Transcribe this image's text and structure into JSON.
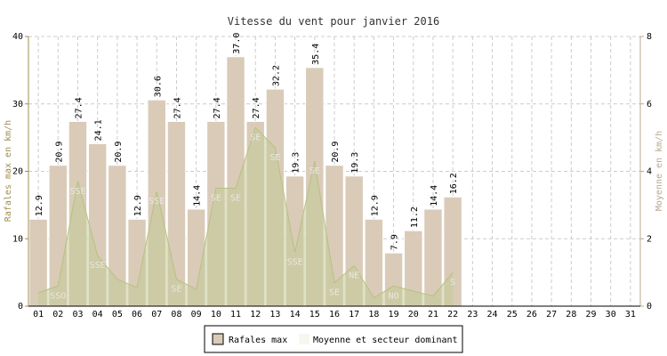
{
  "chart_data": {
    "type": "bar",
    "title": "Vitesse du vent pour janvier 2016",
    "y_label": "Rafales max en km/h",
    "y2_label": "Moyenne en km/h",
    "categories": [
      "01",
      "02",
      "03",
      "04",
      "05",
      "06",
      "07",
      "08",
      "09",
      "10",
      "11",
      "12",
      "13",
      "14",
      "15",
      "16",
      "17",
      "18",
      "19",
      "20",
      "21",
      "22",
      "23",
      "24",
      "25",
      "26",
      "27",
      "28",
      "29",
      "30",
      "31"
    ],
    "series": [
      {
        "name": "Rafales max",
        "color": "#d9cbb8",
        "values": [
          12.9,
          20.9,
          27.4,
          24.1,
          20.9,
          12.9,
          30.6,
          27.4,
          14.4,
          27.4,
          37.0,
          27.4,
          32.2,
          19.3,
          35.4,
          20.9,
          19.3,
          12.9,
          7.9,
          11.2,
          14.4,
          16.2,
          null,
          null,
          null,
          null,
          null,
          null,
          null,
          null,
          null
        ],
        "value_labels": [
          "12.9",
          "20.9",
          "27.4",
          "24.1",
          "20.9",
          "12.9",
          "30.6",
          "27.4",
          "14.4",
          "27.4",
          "37.0",
          "27.4",
          "32.2",
          "19.3",
          "35.4",
          "20.9",
          "19.3",
          "12.9",
          "7.9",
          "11.2",
          "14.4",
          "16.2",
          null,
          null,
          null,
          null,
          null,
          null,
          null,
          null,
          null
        ]
      },
      {
        "name": "Moyenne et secteur dominant",
        "color": "#c3cb98",
        "axis": "y2",
        "values": [
          0.4,
          0.6,
          3.7,
          1.5,
          0.8,
          0.55,
          3.4,
          0.8,
          0.5,
          3.5,
          3.5,
          5.3,
          4.7,
          1.6,
          4.3,
          0.7,
          1.2,
          0.25,
          0.6,
          0.45,
          0.3,
          1.0,
          null,
          null,
          null,
          null,
          null,
          null,
          null,
          null,
          null
        ],
        "sectors": [
          null,
          "SSO",
          "SSE",
          "SSE",
          null,
          null,
          "SSE",
          "SE",
          null,
          "SE",
          "SE",
          "SE",
          "SE",
          "SSE",
          "SE",
          "SE",
          "NE",
          null,
          "NO",
          null,
          null,
          "S",
          null,
          null,
          null,
          null,
          null,
          null,
          null,
          null,
          null
        ]
      }
    ],
    "ylim": [
      0,
      40
    ],
    "yticks": [
      0,
      10,
      20,
      30,
      40
    ],
    "y2lim": [
      0,
      8
    ],
    "y2ticks": [
      0,
      2,
      4,
      6,
      8
    ],
    "grid": true
  }
}
